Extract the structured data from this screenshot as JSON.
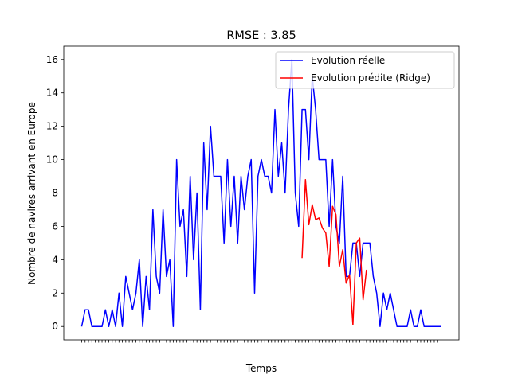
{
  "chart_data": {
    "type": "line",
    "title": "RMSE : 3.85",
    "xlabel": "Temps",
    "ylabel": "Nombre de navires arrivant en Europe",
    "ylim": [
      -0.8,
      16.8
    ],
    "yticks": [
      0,
      2,
      4,
      6,
      8,
      10,
      12,
      14,
      16
    ],
    "grid": false,
    "legend_position": "top-right",
    "series": [
      {
        "name": "Evolution réelle",
        "color": "#0000ff",
        "x_start_index": 0,
        "values": [
          0,
          1,
          1,
          0,
          0,
          0,
          0,
          1,
          0,
          1,
          0,
          2,
          0,
          3,
          2,
          1,
          2,
          4,
          0,
          3,
          1,
          7,
          3,
          2,
          7,
          3,
          4,
          0,
          10,
          6,
          7,
          3,
          9,
          4,
          8,
          1,
          11,
          7,
          12,
          9,
          9,
          9,
          5,
          10,
          6,
          9,
          5,
          9,
          7,
          9,
          10,
          2,
          9,
          10,
          9,
          9,
          8,
          13,
          9,
          11,
          8,
          13,
          16,
          8,
          6,
          13,
          13,
          10,
          15,
          13,
          10,
          10,
          10,
          6,
          10,
          6,
          5,
          9,
          3,
          3,
          5,
          5,
          3,
          5,
          5,
          5,
          3,
          2,
          0,
          2,
          1,
          2,
          1,
          0,
          0,
          0,
          0,
          1,
          0,
          0,
          1,
          0,
          0,
          0,
          0,
          0,
          0
        ]
      },
      {
        "name": "Evolution prédite (Ridge)",
        "color": "#ff0000",
        "x_start_index": 65,
        "values": [
          4.1,
          8.8,
          6.1,
          7.3,
          6.4,
          6.5,
          5.9,
          5.6,
          3.6,
          7.2,
          6.7,
          3.6,
          4.6,
          2.6,
          3.1,
          0.1,
          5.0,
          5.3,
          1.6,
          3.4
        ]
      }
    ]
  }
}
